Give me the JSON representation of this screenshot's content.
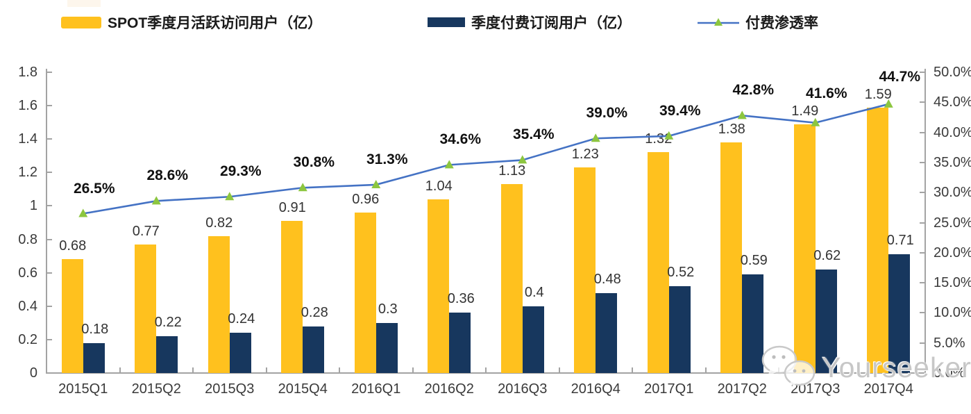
{
  "chart_data": {
    "type": "bar",
    "subtype": "grouped bars with line overlay on secondary axis",
    "title": "",
    "categories": [
      "2015Q1",
      "2015Q2",
      "2015Q3",
      "2015Q4",
      "2016Q1",
      "2016Q2",
      "2016Q3",
      "2016Q4",
      "2017Q1",
      "2017Q2",
      "2017Q3",
      "2017Q4"
    ],
    "series": [
      {
        "name": "SPOT季度月活跃访问用户（亿）",
        "type": "bar",
        "axis": "left",
        "color": "#FFC11E",
        "values": [
          0.68,
          0.77,
          0.82,
          0.91,
          0.96,
          1.04,
          1.13,
          1.23,
          1.32,
          1.38,
          1.49,
          1.59
        ],
        "labels": [
          "0.68",
          "0.77",
          "0.82",
          "0.91",
          "0.96",
          "1.04",
          "1.13",
          "1.23",
          "1.32",
          "1.38",
          "1.49",
          "1.59"
        ]
      },
      {
        "name": "季度付费订阅用户（亿）",
        "type": "bar",
        "axis": "left",
        "color": "#17375E",
        "values": [
          0.18,
          0.22,
          0.24,
          0.28,
          0.3,
          0.36,
          0.4,
          0.48,
          0.52,
          0.59,
          0.62,
          0.71
        ],
        "labels": [
          "0.18",
          "0.22",
          "0.24",
          "0.28",
          "0.3",
          "0.36",
          "0.4",
          "0.48",
          "0.52",
          "0.59",
          "0.62",
          "0.71"
        ]
      },
      {
        "name": "付费渗透率",
        "type": "line",
        "axis": "right",
        "color": "#4472C4",
        "marker": "triangle",
        "marker_color": "#8CC63F",
        "values": [
          26.5,
          28.6,
          29.3,
          30.8,
          31.3,
          34.6,
          35.4,
          39.0,
          39.4,
          42.8,
          41.6,
          44.7
        ],
        "labels": [
          "26.5%",
          "28.6%",
          "29.3%",
          "30.8%",
          "31.3%",
          "34.6%",
          "35.4%",
          "39.0%",
          "39.4%",
          "42.8%",
          "41.6%",
          "44.7%"
        ]
      }
    ],
    "left_axis": {
      "min": 0,
      "max": 1.8,
      "step": 0.2,
      "tick_labels": [
        "0",
        "0.2",
        "0.4",
        "0.6",
        "0.8",
        "1",
        "1.2",
        "1.4",
        "1.6",
        "1.8"
      ]
    },
    "right_axis": {
      "min": 0,
      "max": 50,
      "step": 5,
      "tick_labels": [
        "0.0%",
        "5.0%",
        "10.0%",
        "15.0%",
        "20.0%",
        "25.0%",
        "30.0%",
        "35.0%",
        "40.0%",
        "45.0%",
        "50.0%"
      ]
    },
    "legend_position": "top",
    "grid": false
  },
  "watermark": {
    "text": "Yourseeker",
    "icon": "wechat-icon"
  },
  "colors": {
    "axis": "#a3a3a3",
    "value_label": "#333333",
    "pct_label": "#111111"
  }
}
